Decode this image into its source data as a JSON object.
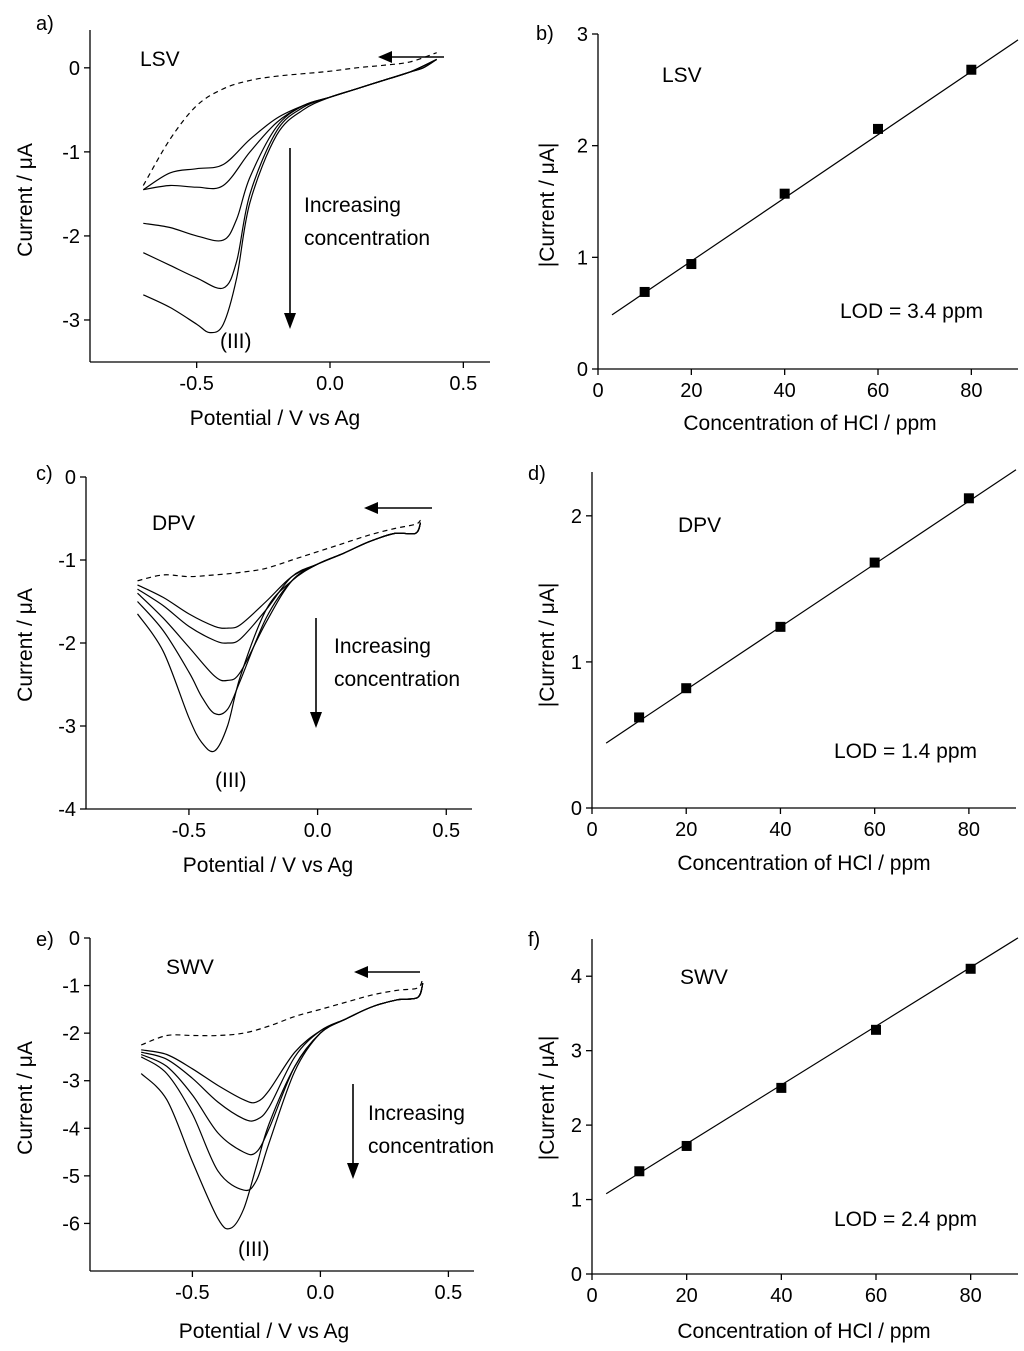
{
  "chart_data": [
    {
      "id": "a",
      "type": "line",
      "panel_label": "a)",
      "method": "LSV",
      "xlabel": "Potential / V vs Ag",
      "ylabel": "Current / μA",
      "xlim": [
        -0.9,
        0.6
      ],
      "ylim": [
        -3.5,
        0.45
      ],
      "xticks": [
        -0.5,
        0.0,
        0.5
      ],
      "xtick_labels": [
        "-0.5",
        "0.0",
        "0.5"
      ],
      "yticks": [
        0,
        -1,
        -2,
        -3
      ],
      "ytick_labels": [
        "0",
        "-1",
        "-2",
        "-3"
      ],
      "annotation": "Increasing\nconcentration",
      "peak_label": "(III)",
      "background": {
        "name": "blank",
        "x": [
          -0.7,
          -0.6,
          -0.5,
          -0.4,
          -0.3,
          -0.2,
          -0.1,
          0.0,
          0.1,
          0.2,
          0.3,
          0.4
        ],
        "y": [
          -1.4,
          -0.85,
          -0.45,
          -0.25,
          -0.15,
          -0.1,
          -0.07,
          -0.04,
          0.0,
          0.03,
          0.07,
          0.18
        ]
      },
      "series": [
        {
          "name": "c1",
          "x": [
            -0.7,
            -0.6,
            -0.5,
            -0.4,
            -0.3,
            -0.2,
            -0.1,
            0.0,
            0.1,
            0.2,
            0.3,
            0.35,
            0.4
          ],
          "y": [
            -1.45,
            -1.25,
            -1.2,
            -1.15,
            -0.85,
            -0.6,
            -0.45,
            -0.35,
            -0.25,
            -0.15,
            -0.05,
            0.0,
            0.1
          ]
        },
        {
          "name": "c2",
          "x": [
            -0.7,
            -0.6,
            -0.5,
            -0.4,
            -0.3,
            -0.2,
            -0.1,
            0.0,
            0.1,
            0.2,
            0.3,
            0.35,
            0.4
          ],
          "y": [
            -1.45,
            -1.4,
            -1.42,
            -1.4,
            -1.0,
            -0.65,
            -0.45,
            -0.35,
            -0.25,
            -0.15,
            -0.05,
            0.0,
            0.1
          ]
        },
        {
          "name": "c3",
          "x": [
            -0.7,
            -0.6,
            -0.5,
            -0.4,
            -0.35,
            -0.3,
            -0.2,
            -0.1,
            0.0,
            0.1,
            0.2,
            0.3,
            0.4
          ],
          "y": [
            -1.85,
            -1.9,
            -2.0,
            -2.05,
            -1.8,
            -1.3,
            -0.7,
            -0.45,
            -0.35,
            -0.25,
            -0.15,
            -0.05,
            0.1
          ]
        },
        {
          "name": "c4",
          "x": [
            -0.7,
            -0.6,
            -0.5,
            -0.4,
            -0.35,
            -0.3,
            -0.2,
            -0.1,
            0.0,
            0.1,
            0.2,
            0.3,
            0.4
          ],
          "y": [
            -2.2,
            -2.35,
            -2.5,
            -2.62,
            -2.3,
            -1.5,
            -0.75,
            -0.47,
            -0.35,
            -0.25,
            -0.15,
            -0.05,
            0.1
          ]
        },
        {
          "name": "c5",
          "x": [
            -0.7,
            -0.6,
            -0.5,
            -0.45,
            -0.4,
            -0.35,
            -0.3,
            -0.2,
            -0.1,
            0.0,
            0.1,
            0.2,
            0.3,
            0.4
          ],
          "y": [
            -2.7,
            -2.85,
            -3.05,
            -3.15,
            -3.05,
            -2.5,
            -1.6,
            -0.8,
            -0.5,
            -0.35,
            -0.25,
            -0.15,
            -0.05,
            0.1
          ]
        }
      ]
    },
    {
      "id": "b",
      "type": "scatter",
      "panel_label": "b)",
      "method": "LSV",
      "xlabel": "Concentration of HCl / ppm",
      "ylabel": "|Current / μA|",
      "xlim": [
        0,
        90
      ],
      "ylim": [
        0,
        3
      ],
      "xticks": [
        0,
        20,
        40,
        60,
        80
      ],
      "xtick_labels": [
        "0",
        "20",
        "40",
        "60",
        "80"
      ],
      "yticks": [
        0,
        1,
        2,
        3
      ],
      "ytick_labels": [
        "0",
        "1",
        "2",
        "3"
      ],
      "x": [
        10,
        20,
        40,
        60,
        80
      ],
      "y": [
        0.69,
        0.94,
        1.57,
        2.15,
        2.68
      ],
      "fit": {
        "slope": 0.0283,
        "intercept": 0.4,
        "x_range": [
          0,
          90
        ]
      },
      "lod_label": "LOD = 3.4 ppm"
    },
    {
      "id": "c",
      "type": "line",
      "panel_label": "c)",
      "method": "DPV",
      "xlabel": "Potential / V vs Ag",
      "ylabel": "Current / μA",
      "xlim": [
        -0.9,
        0.6
      ],
      "ylim": [
        -4,
        0
      ],
      "xticks": [
        -0.5,
        0.0,
        0.5
      ],
      "xtick_labels": [
        "-0.5",
        "0.0",
        "0.5"
      ],
      "yticks": [
        0,
        -1,
        -2,
        -3,
        -4
      ],
      "ytick_labels": [
        "0",
        "-1",
        "-2",
        "-3",
        "-4"
      ],
      "annotation": "Increasing\nconcentration",
      "peak_label": "(III)",
      "background": {
        "name": "blank",
        "x": [
          -0.7,
          -0.6,
          -0.5,
          -0.4,
          -0.3,
          -0.2,
          -0.1,
          0.0,
          0.1,
          0.2,
          0.3,
          0.38,
          0.4
        ],
        "y": [
          -1.25,
          -1.18,
          -1.2,
          -1.18,
          -1.15,
          -1.1,
          -1.0,
          -0.9,
          -0.8,
          -0.7,
          -0.62,
          -0.57,
          -0.52
        ]
      },
      "series": [
        {
          "name": "c1",
          "x": [
            -0.7,
            -0.6,
            -0.5,
            -0.4,
            -0.35,
            -0.3,
            -0.2,
            -0.1,
            0.0,
            0.1,
            0.2,
            0.3,
            0.38,
            0.4
          ],
          "y": [
            -1.3,
            -1.45,
            -1.65,
            -1.8,
            -1.82,
            -1.78,
            -1.5,
            -1.2,
            -1.05,
            -0.92,
            -0.78,
            -0.68,
            -0.68,
            -0.55
          ]
        },
        {
          "name": "c2",
          "x": [
            -0.7,
            -0.6,
            -0.5,
            -0.4,
            -0.35,
            -0.3,
            -0.2,
            -0.1,
            0.0,
            0.1,
            0.2,
            0.3,
            0.38,
            0.4
          ],
          "y": [
            -1.35,
            -1.55,
            -1.8,
            -1.97,
            -2.0,
            -1.95,
            -1.6,
            -1.2,
            -1.05,
            -0.92,
            -0.78,
            -0.68,
            -0.68,
            -0.55
          ]
        },
        {
          "name": "c3",
          "x": [
            -0.7,
            -0.6,
            -0.5,
            -0.4,
            -0.35,
            -0.3,
            -0.2,
            -0.1,
            0.0,
            0.1,
            0.2,
            0.3,
            0.38,
            0.4
          ],
          "y": [
            -1.4,
            -1.7,
            -2.05,
            -2.4,
            -2.45,
            -2.35,
            -1.75,
            -1.25,
            -1.05,
            -0.92,
            -0.78,
            -0.68,
            -0.68,
            -0.55
          ]
        },
        {
          "name": "c4",
          "x": [
            -0.7,
            -0.6,
            -0.5,
            -0.45,
            -0.4,
            -0.35,
            -0.3,
            -0.2,
            -0.1,
            0.0,
            0.1,
            0.2,
            0.3,
            0.38,
            0.4
          ],
          "y": [
            -1.5,
            -1.85,
            -2.35,
            -2.65,
            -2.85,
            -2.8,
            -2.45,
            -1.7,
            -1.25,
            -1.05,
            -0.92,
            -0.78,
            -0.68,
            -0.68,
            -0.55
          ]
        },
        {
          "name": "c5",
          "x": [
            -0.7,
            -0.6,
            -0.5,
            -0.45,
            -0.4,
            -0.35,
            -0.3,
            -0.2,
            -0.1,
            0.0,
            0.1,
            0.2,
            0.3,
            0.38,
            0.4
          ],
          "y": [
            -1.65,
            -2.1,
            -2.9,
            -3.2,
            -3.3,
            -3.0,
            -2.4,
            -1.6,
            -1.25,
            -1.05,
            -0.92,
            -0.78,
            -0.68,
            -0.68,
            -0.55
          ]
        }
      ]
    },
    {
      "id": "d",
      "type": "scatter",
      "panel_label": "d)",
      "method": "DPV",
      "xlabel": "Concentration of HCl / ppm",
      "ylabel": "|Current / μA|",
      "xlim": [
        0,
        90
      ],
      "ylim": [
        0,
        2.3
      ],
      "xticks": [
        0,
        20,
        40,
        60,
        80
      ],
      "xtick_labels": [
        "0",
        "20",
        "40",
        "60",
        "80"
      ],
      "yticks": [
        0,
        1,
        2
      ],
      "ytick_labels": [
        "0",
        "1",
        "2"
      ],
      "x": [
        10,
        20,
        40,
        60,
        80
      ],
      "y": [
        0.62,
        0.82,
        1.24,
        1.68,
        2.12
      ],
      "fit": {
        "slope": 0.0215,
        "intercept": 0.38,
        "x_range": [
          0,
          90
        ]
      },
      "lod_label": "LOD = 1.4 ppm"
    },
    {
      "id": "e",
      "type": "line",
      "panel_label": "e)",
      "method": "SWV",
      "xlabel": "Potential / V vs Ag",
      "ylabel": "Current / μA",
      "xlim": [
        -0.9,
        0.6
      ],
      "ylim": [
        -7,
        0
      ],
      "xticks": [
        -0.5,
        0.0,
        0.5
      ],
      "xtick_labels": [
        "-0.5",
        "0.0",
        "0.5"
      ],
      "yticks": [
        0,
        -1,
        -2,
        -3,
        -4,
        -5,
        -6
      ],
      "ytick_labels": [
        "0",
        "-1",
        "-2",
        "-3",
        "-4",
        "-5",
        "-6"
      ],
      "annotation": "Increasing\nconcentration",
      "peak_label": "(III)",
      "background": {
        "name": "blank",
        "x": [
          -0.7,
          -0.6,
          -0.5,
          -0.4,
          -0.3,
          -0.2,
          -0.1,
          0.0,
          0.1,
          0.2,
          0.3,
          0.38,
          0.4
        ],
        "y": [
          -2.25,
          -2.05,
          -2.05,
          -2.05,
          -2.0,
          -1.85,
          -1.65,
          -1.5,
          -1.35,
          -1.2,
          -1.1,
          -1.05,
          -0.85
        ]
      },
      "series": [
        {
          "name": "c1",
          "x": [
            -0.7,
            -0.6,
            -0.5,
            -0.4,
            -0.3,
            -0.25,
            -0.2,
            -0.1,
            0.0,
            0.1,
            0.2,
            0.3,
            0.38,
            0.4
          ],
          "y": [
            -2.35,
            -2.45,
            -2.75,
            -3.1,
            -3.4,
            -3.45,
            -3.2,
            -2.4,
            -1.95,
            -1.7,
            -1.45,
            -1.3,
            -1.25,
            -0.95
          ]
        },
        {
          "name": "c2",
          "x": [
            -0.7,
            -0.6,
            -0.5,
            -0.4,
            -0.3,
            -0.25,
            -0.2,
            -0.1,
            0.0,
            0.1,
            0.2,
            0.3,
            0.38,
            0.4
          ],
          "y": [
            -2.4,
            -2.55,
            -2.95,
            -3.45,
            -3.8,
            -3.82,
            -3.55,
            -2.5,
            -1.95,
            -1.7,
            -1.45,
            -1.3,
            -1.25,
            -0.95
          ]
        },
        {
          "name": "c3",
          "x": [
            -0.7,
            -0.6,
            -0.5,
            -0.4,
            -0.3,
            -0.25,
            -0.2,
            -0.1,
            0.0,
            0.1,
            0.2,
            0.3,
            0.38,
            0.4
          ],
          "y": [
            -2.45,
            -2.7,
            -3.3,
            -4.1,
            -4.5,
            -4.5,
            -4.0,
            -2.7,
            -2.0,
            -1.7,
            -1.45,
            -1.3,
            -1.25,
            -0.95
          ]
        },
        {
          "name": "c4",
          "x": [
            -0.7,
            -0.6,
            -0.5,
            -0.4,
            -0.3,
            -0.25,
            -0.2,
            -0.1,
            0.0,
            0.1,
            0.2,
            0.3,
            0.38,
            0.4
          ],
          "y": [
            -2.5,
            -2.85,
            -3.7,
            -4.9,
            -5.3,
            -5.1,
            -4.3,
            -2.8,
            -2.0,
            -1.7,
            -1.45,
            -1.3,
            -1.25,
            -0.95
          ]
        },
        {
          "name": "c5",
          "x": [
            -0.7,
            -0.6,
            -0.5,
            -0.4,
            -0.35,
            -0.3,
            -0.25,
            -0.2,
            -0.1,
            0.0,
            0.1,
            0.2,
            0.3,
            0.38,
            0.4
          ],
          "y": [
            -2.85,
            -3.4,
            -4.7,
            -5.9,
            -6.1,
            -5.7,
            -4.8,
            -3.9,
            -2.7,
            -2.0,
            -1.7,
            -1.45,
            -1.3,
            -1.25,
            -0.95
          ]
        }
      ]
    },
    {
      "id": "f",
      "type": "scatter",
      "panel_label": "f)",
      "method": "SWV",
      "xlabel": "Concentration of HCl / ppm",
      "ylabel": "|Current / μA|",
      "xlim": [
        0,
        90
      ],
      "ylim": [
        0,
        4.5
      ],
      "xticks": [
        0,
        20,
        40,
        60,
        80
      ],
      "xtick_labels": [
        "0",
        "20",
        "40",
        "60",
        "80"
      ],
      "yticks": [
        0,
        1,
        2,
        3,
        4
      ],
      "ytick_labels": [
        "0",
        "1",
        "2",
        "3",
        "4"
      ],
      "x": [
        10,
        20,
        40,
        60,
        80
      ],
      "y": [
        1.38,
        1.72,
        2.5,
        3.28,
        4.1
      ],
      "fit": {
        "slope": 0.0395,
        "intercept": 0.96,
        "x_range": [
          0,
          90
        ]
      },
      "lod_label": "LOD = 2.4 ppm"
    }
  ]
}
